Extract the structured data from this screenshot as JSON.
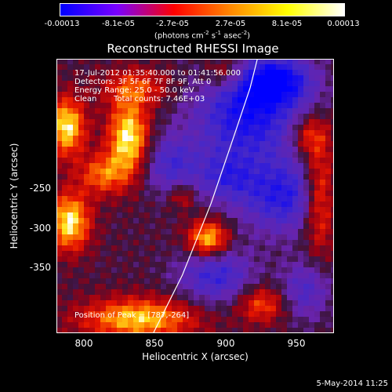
{
  "colorbar": {
    "min": -0.00013,
    "max": 0.00013,
    "tick_labels": [
      "-0.00013",
      "-8.1e-05",
      "-2.7e-05",
      "2.7e-05",
      "8.1e-05",
      "0.00013"
    ],
    "units_prefix": "(photons cm",
    "units_exp1": "-2",
    "units_mid": " s",
    "units_exp2": "-1",
    "units_mid2": " asec",
    "units_exp3": "-2",
    "units_suffix": ")",
    "colors": [
      "#0000ff",
      "#7a00ff",
      "#ff0000",
      "#ff8800",
      "#ffff00",
      "#ffffff"
    ]
  },
  "chart_data": {
    "type": "heatmap",
    "title": "Reconstructed RHESSI Image",
    "xlabel": "Heliocentric X (arcsec)",
    "ylabel": "Heliocentric Y (arcsec)",
    "xlim": [
      783,
      975
    ],
    "ylim": [
      -395,
      -205
    ],
    "x_ticks": [
      800,
      850,
      900,
      950
    ],
    "y_ticks": [
      -250,
      -300,
      -350
    ],
    "info": {
      "time": "17-Jul-2012 01:35:40.000 to 01:41:56.000",
      "detectors": "Detectors: 3F 5F 6F 7F 8F 9F, Att 0",
      "energy": "Energy Range: 25.0 - 50.0 keV",
      "method": "Clean",
      "counts": "Total counts: 7.46E+03"
    },
    "peak": {
      "x": 787,
      "y": -264,
      "label": "Position of Peak = [787,-264]"
    },
    "limb_curve": [
      [
        850,
        -395
      ],
      [
        870,
        -355
      ],
      [
        890,
        -305
      ],
      [
        907,
        -255
      ],
      [
        917,
        -225
      ],
      [
        922,
        -205
      ]
    ],
    "hotspots": [
      {
        "x": 833,
        "y": -260,
        "sx": 10,
        "sy": 18,
        "amp": 1.0
      },
      {
        "x": 815,
        "y": -285,
        "sx": 12,
        "sy": 10,
        "amp": 0.6
      },
      {
        "x": 790,
        "y": -252,
        "sx": 9,
        "sy": 14,
        "amp": 0.95
      },
      {
        "x": 792,
        "y": -318,
        "sx": 10,
        "sy": 14,
        "amp": 0.95
      },
      {
        "x": 888,
        "y": -330,
        "sx": 10,
        "sy": 9,
        "amp": 0.9
      },
      {
        "x": 840,
        "y": -385,
        "sx": 28,
        "sy": 10,
        "amp": 0.85
      },
      {
        "x": 838,
        "y": -225,
        "sx": 16,
        "sy": 9,
        "amp": 0.5
      },
      {
        "x": 965,
        "y": -300,
        "sx": 8,
        "sy": 26,
        "amp": 0.75
      },
      {
        "x": 958,
        "y": -258,
        "sx": 9,
        "sy": 10,
        "amp": 0.5
      },
      {
        "x": 925,
        "y": -375,
        "sx": 12,
        "sy": 9,
        "amp": 0.55
      },
      {
        "x": 900,
        "y": -215,
        "sx": 10,
        "sy": 8,
        "amp": 0.45
      },
      {
        "x": 870,
        "y": -300,
        "sx": 6,
        "sy": 6,
        "amp": 0.4
      }
    ],
    "coldspots": [
      {
        "x": 915,
        "y": -245,
        "sx": 26,
        "sy": 22,
        "amp": 0.85
      },
      {
        "x": 940,
        "y": -300,
        "sx": 22,
        "sy": 18,
        "amp": 0.75
      },
      {
        "x": 935,
        "y": -220,
        "sx": 18,
        "sy": 12,
        "amp": 0.9
      },
      {
        "x": 893,
        "y": -355,
        "sx": 18,
        "sy": 14,
        "amp": 0.65
      },
      {
        "x": 862,
        "y": -278,
        "sx": 14,
        "sy": 14,
        "amp": 0.55
      },
      {
        "x": 900,
        "y": -287,
        "sx": 14,
        "sy": 12,
        "amp": 0.5
      },
      {
        "x": 955,
        "y": -365,
        "sx": 12,
        "sy": 14,
        "amp": 0.5
      }
    ]
  },
  "footer": {
    "date": "5-May-2014 11:25"
  }
}
